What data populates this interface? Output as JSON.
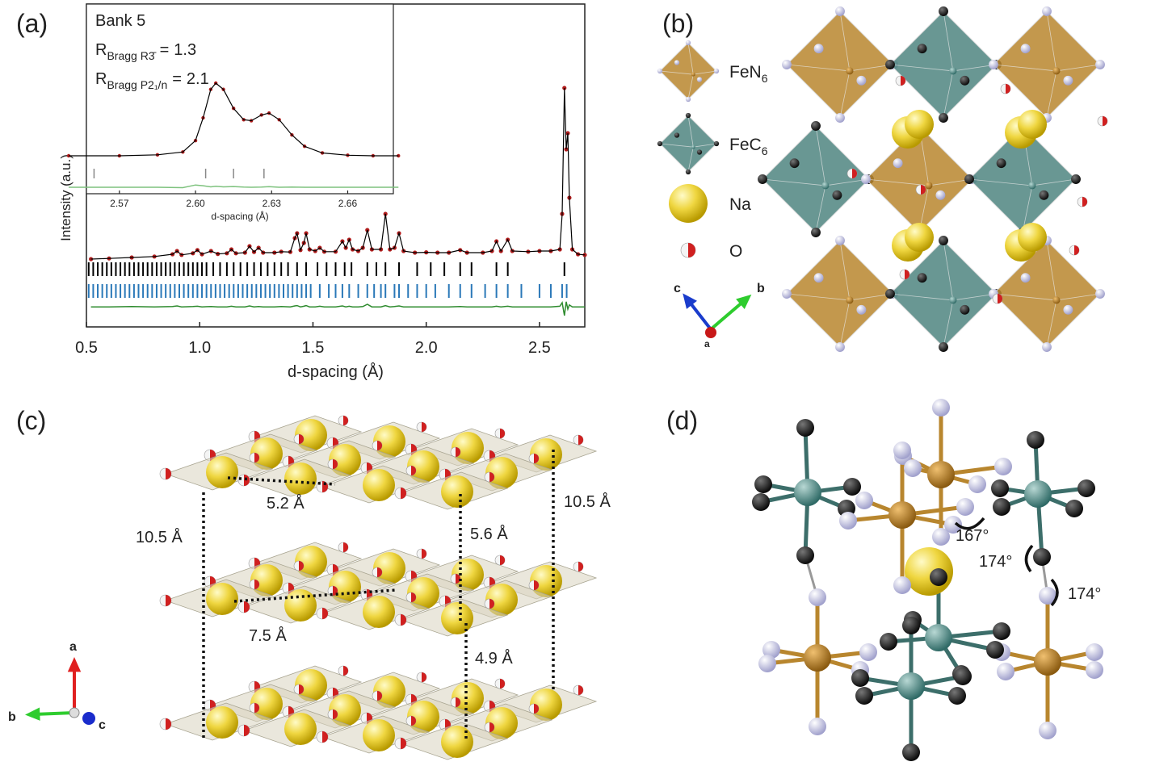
{
  "chart_data": [
    {
      "type": "line",
      "xlabel": "d-spacing (Å)",
      "ylabel": "Intensity (a.u.)",
      "xlim": [
        0.5,
        2.7
      ],
      "ylim": [
        0,
        100
      ],
      "xticks": [
        0.5,
        {
          "value": 1,
          "label": "1.0"
        },
        1.5,
        {
          "value": 2,
          "label": "2.0"
        },
        2.5
      ],
      "x": [
        0.52,
        0.6,
        0.7,
        0.8,
        0.88,
        0.9,
        0.92,
        0.97,
        0.99,
        1.01,
        1.05,
        1.08,
        1.12,
        1.14,
        1.16,
        1.2,
        1.22,
        1.24,
        1.26,
        1.28,
        1.33,
        1.36,
        1.4,
        1.42,
        1.43,
        1.445,
        1.46,
        1.47,
        1.485,
        1.51,
        1.53,
        1.55,
        1.6,
        1.63,
        1.645,
        1.66,
        1.675,
        1.7,
        1.72,
        1.74,
        1.76,
        1.8,
        1.82,
        1.84,
        1.86,
        1.88,
        1.9,
        1.95,
        2.0,
        2.05,
        2.1,
        2.15,
        2.18,
        2.25,
        2.29,
        2.31,
        2.33,
        2.36,
        2.38,
        2.45,
        2.5,
        2.55,
        2.59,
        2.6,
        2.61,
        2.618,
        2.625,
        2.632,
        2.645,
        2.67,
        2.7
      ],
      "series": [
        {
          "color": "#b01c1c",
          "line_color": "#000000",
          "markers": true,
          "values": [
            21,
            21.2,
            21.5,
            21.8,
            22.5,
            23.5,
            22.3,
            22.8,
            23.8,
            22.5,
            23.5,
            22.6,
            22.8,
            24,
            22.8,
            23,
            25,
            23.2,
            24.5,
            23,
            23,
            23.3,
            23.2,
            27.5,
            29,
            23.8,
            26,
            29,
            24,
            23.5,
            24.5,
            23.3,
            23.3,
            26.5,
            24.5,
            27,
            24,
            23.5,
            24.5,
            30,
            24,
            24,
            35,
            24,
            24.5,
            29,
            23.5,
            23,
            23.1,
            23,
            23,
            23.8,
            23,
            23,
            23.5,
            26.5,
            23.5,
            27,
            23.5,
            23.3,
            23.5,
            23.5,
            24,
            35,
            74,
            55,
            60,
            40,
            24,
            22.5,
            22.3
          ]
        },
        {
          "color": "#2e8b2e",
          "values": [
            6.2,
            6.2,
            6.3,
            6.2,
            6.3,
            6.5,
            6.2,
            6.3,
            6.4,
            6.2,
            6.3,
            6.2,
            6.2,
            6.4,
            6.2,
            6.2,
            6.5,
            6.2,
            6.3,
            6.2,
            6.2,
            6.3,
            6.2,
            6.5,
            6.6,
            6.2,
            6.4,
            6.6,
            6.2,
            6.2,
            6.4,
            6.2,
            6.2,
            6.5,
            6.2,
            6.4,
            6.2,
            6.2,
            6.3,
            7,
            6.2,
            6.2,
            6.6,
            6.2,
            6.3,
            6.5,
            6.2,
            6.2,
            6.2,
            6.2,
            6.2,
            6.3,
            6.2,
            6.2,
            6.2,
            6.4,
            6.2,
            6.4,
            6.2,
            6.2,
            6.2,
            6.2,
            6.4,
            7.5,
            3.5,
            7.8,
            5.5,
            6.8,
            6.2,
            6.2,
            6.2
          ]
        }
      ],
      "reflections": [
        {
          "color": "#000000",
          "positions": [
            0.51,
            0.53,
            0.55,
            0.57,
            0.59,
            0.61,
            0.63,
            0.65,
            0.67,
            0.69,
            0.71,
            0.73,
            0.75,
            0.77,
            0.79,
            0.81,
            0.83,
            0.85,
            0.87,
            0.89,
            0.91,
            0.93,
            0.95,
            0.97,
            0.99,
            1.01,
            1.03,
            1.06,
            1.09,
            1.12,
            1.15,
            1.18,
            1.21,
            1.24,
            1.27,
            1.3,
            1.33,
            1.36,
            1.39,
            1.43,
            1.47,
            1.52,
            1.56,
            1.6,
            1.64,
            1.67,
            1.74,
            1.78,
            1.82,
            1.88,
            1.96,
            2.02,
            2.08,
            2.15,
            2.2,
            2.31,
            2.36,
            2.61
          ]
        },
        {
          "color": "#2a78b8",
          "positions": [
            0.51,
            0.53,
            0.55,
            0.57,
            0.59,
            0.61,
            0.63,
            0.65,
            0.67,
            0.69,
            0.71,
            0.73,
            0.75,
            0.77,
            0.79,
            0.81,
            0.83,
            0.85,
            0.87,
            0.89,
            0.91,
            0.93,
            0.95,
            0.97,
            0.99,
            1.01,
            1.03,
            1.05,
            1.07,
            1.09,
            1.11,
            1.13,
            1.15,
            1.17,
            1.19,
            1.21,
            1.23,
            1.25,
            1.27,
            1.29,
            1.31,
            1.33,
            1.35,
            1.37,
            1.39,
            1.41,
            1.43,
            1.45,
            1.47,
            1.49,
            1.53,
            1.57,
            1.6,
            1.63,
            1.66,
            1.7,
            1.74,
            1.77,
            1.8,
            1.82,
            1.86,
            1.88,
            1.92,
            1.96,
            2.0,
            2.04,
            2.1,
            2.15,
            2.2,
            2.26,
            2.31,
            2.36,
            2.42,
            2.5,
            2.55,
            2.6,
            2.62
          ]
        }
      ]
    },
    {
      "type": "line",
      "xlabel": "d-spacing (Å)",
      "xlim": [
        2.557,
        2.678
      ],
      "ylim": [
        0,
        100
      ],
      "xticks": [
        2.57,
        {
          "value": 2.6,
          "label": "2.60"
        },
        2.63,
        2.66
      ],
      "title": "Bank 5",
      "r_factors": [
        {
          "label": "R",
          "sub": "Bragg R3̄",
          "relation": "=",
          "value": 1.3
        },
        {
          "label": "R",
          "sub": "Bragg P2₁/n",
          "relation": "=",
          "value": 2.1
        }
      ],
      "x": [
        2.55,
        2.57,
        2.585,
        2.595,
        2.6,
        2.603,
        2.606,
        2.608,
        2.611,
        2.615,
        2.619,
        2.622,
        2.626,
        2.629,
        2.633,
        2.638,
        2.643,
        2.65,
        2.66,
        2.67,
        2.68
      ],
      "series": [
        {
          "color": "#b01c1c",
          "line_color": "#000000",
          "markers": true,
          "values": [
            20,
            20,
            20.5,
            22,
            28,
            40,
            55,
            58.3,
            55,
            45,
            39,
            38.5,
            41.5,
            42.5,
            39,
            31,
            25,
            21.5,
            20.3,
            20,
            20
          ]
        },
        {
          "color": "#7ec27e",
          "values": [
            3.4,
            3.4,
            3.4,
            3.2,
            4.6,
            4.2,
            3.6,
            3.9,
            3.6,
            3.8,
            3.5,
            3.4,
            3.5,
            3.7,
            3.4,
            3.5,
            3.4,
            3.4,
            3.4,
            3.4,
            3.4
          ]
        }
      ],
      "reflections": [
        {
          "color": "#888888",
          "positions": [
            2.56,
            2.604,
            2.615,
            2.627
          ]
        }
      ]
    }
  ],
  "panels": {
    "labels": [
      "(a)",
      "(b)",
      "(c)",
      "(d)"
    ],
    "b": {
      "legend": [
        {
          "label": "FeN",
          "sub": "6"
        },
        {
          "label": "FeC",
          "sub": "6"
        },
        {
          "label": "Na",
          "sub": ""
        },
        {
          "label": "O",
          "sub": ""
        }
      ],
      "axes": [
        "c",
        "b",
        "a"
      ]
    },
    "c": {
      "distances": [
        "5.2 Å",
        "10.5 Å",
        "5.6 Å",
        "10.5 Å",
        "7.5 Å",
        "4.9 Å"
      ],
      "axes": [
        "a",
        "b",
        "c"
      ]
    },
    "d": {
      "angles": [
        "167°",
        "174°",
        "174°"
      ]
    }
  }
}
